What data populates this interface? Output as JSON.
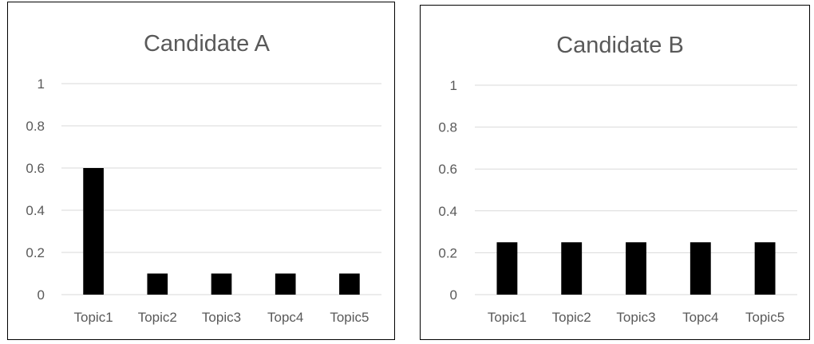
{
  "chart_data": [
    {
      "type": "bar",
      "title": "Candidate A",
      "categories": [
        "Topic1",
        "Topic2",
        "Topic3",
        "Topc4",
        "Topic5"
      ],
      "values": [
        0.6,
        0.1,
        0.1,
        0.1,
        0.1
      ],
      "ylim": [
        0,
        1
      ],
      "yticks": [
        "0",
        "0.2",
        "0.4",
        "0.6",
        "0.8",
        "1"
      ],
      "xlabel": "",
      "ylabel": "",
      "grid": true,
      "legend": "none",
      "bar_color": "#000000",
      "grid_color": "#d9d9d9",
      "text_color": "#595959"
    },
    {
      "type": "bar",
      "title": "Candidate B",
      "categories": [
        "Topic1",
        "Topic2",
        "Topic3",
        "Topc4",
        "Topic5"
      ],
      "values": [
        0.25,
        0.25,
        0.25,
        0.25,
        0.25
      ],
      "ylim": [
        0,
        1
      ],
      "yticks": [
        "0",
        "0.2",
        "0.4",
        "0.6",
        "0.8",
        "1"
      ],
      "xlabel": "",
      "ylabel": "",
      "grid": true,
      "legend": "none",
      "bar_color": "#000000",
      "grid_color": "#d9d9d9",
      "text_color": "#595959"
    }
  ]
}
